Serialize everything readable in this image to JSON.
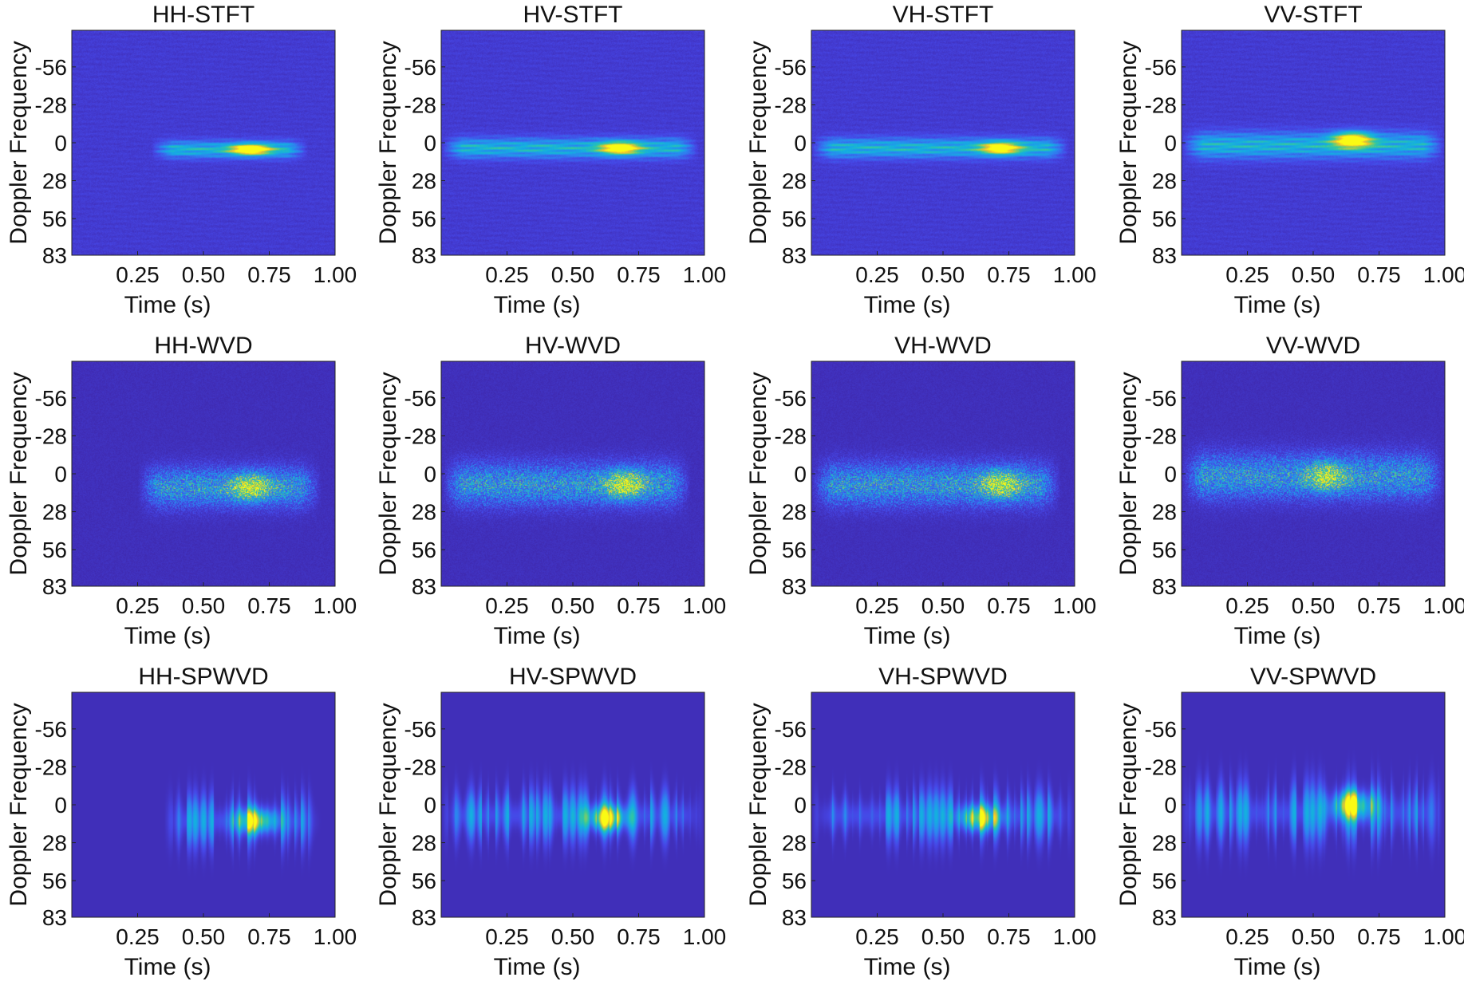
{
  "chart_data": [
    {
      "type": "heatmap",
      "title": "HH-STFT",
      "method": "STFT",
      "channel": "HH",
      "xlabel": "Time (s)",
      "ylabel": "Doppler Frequency",
      "xticks": [
        0.25,
        0.5,
        0.75,
        1.0
      ],
      "xtick_labels": [
        "0.25",
        "0.50",
        "0.75",
        "1.00"
      ],
      "yticks": [
        -56,
        -28,
        0,
        28,
        56,
        83
      ],
      "ytick_labels": [
        "-56",
        "-28",
        "0",
        "28",
        "56",
        "83"
      ],
      "xlim": [
        0,
        1.0
      ],
      "ylim": [
        -83,
        83
      ],
      "yaxis_direction": "reversed",
      "colormap": "parula",
      "background_color": "#3e26a8",
      "energy": {
        "t_start": 0.3,
        "t_end": 0.9,
        "f_center": 5,
        "f_spread": 6,
        "peak_t": 0.68,
        "peak_f": 5,
        "peak_level": 0.95
      }
    },
    {
      "type": "heatmap",
      "title": "HV-STFT",
      "method": "STFT",
      "channel": "HV",
      "xlabel": "Time (s)",
      "ylabel": "Doppler Frequency",
      "xticks": [
        0.25,
        0.5,
        0.75,
        1.0
      ],
      "xtick_labels": [
        "0.25",
        "0.50",
        "0.75",
        "1.00"
      ],
      "yticks": [
        -56,
        -28,
        0,
        28,
        56,
        83
      ],
      "ytick_labels": [
        "-56",
        "-28",
        "0",
        "28",
        "56",
        "83"
      ],
      "xlim": [
        0,
        1.0
      ],
      "ylim": [
        -83,
        83
      ],
      "yaxis_direction": "reversed",
      "colormap": "parula",
      "background_color": "#3e26a8",
      "energy": {
        "t_start": 0.0,
        "t_end": 0.98,
        "f_center": 4,
        "f_spread": 7,
        "peak_t": 0.68,
        "peak_f": 4,
        "peak_level": 0.85
      }
    },
    {
      "type": "heatmap",
      "title": "VH-STFT",
      "method": "STFT",
      "channel": "VH",
      "xlabel": "Time (s)",
      "ylabel": "Doppler Frequency",
      "xticks": [
        0.25,
        0.5,
        0.75,
        1.0
      ],
      "xtick_labels": [
        "0.25",
        "0.50",
        "0.75",
        "1.00"
      ],
      "yticks": [
        -56,
        -28,
        0,
        28,
        56,
        83
      ],
      "ytick_labels": [
        "-56",
        "-28",
        "0",
        "28",
        "56",
        "83"
      ],
      "xlim": [
        0,
        1.0
      ],
      "ylim": [
        -83,
        83
      ],
      "yaxis_direction": "reversed",
      "colormap": "parula",
      "background_color": "#3e26a8",
      "energy": {
        "t_start": 0.0,
        "t_end": 0.98,
        "f_center": 4,
        "f_spread": 7,
        "peak_t": 0.72,
        "peak_f": 4,
        "peak_level": 0.8
      }
    },
    {
      "type": "heatmap",
      "title": "VV-STFT",
      "method": "STFT",
      "channel": "VV",
      "xlabel": "Time (s)",
      "ylabel": "Doppler Frequency",
      "xticks": [
        0.25,
        0.5,
        0.75,
        1.0
      ],
      "xtick_labels": [
        "0.25",
        "0.50",
        "0.75",
        "1.00"
      ],
      "yticks": [
        -56,
        -28,
        0,
        28,
        56,
        83
      ],
      "ytick_labels": [
        "-56",
        "-28",
        "0",
        "28",
        "56",
        "83"
      ],
      "xlim": [
        0,
        1.0
      ],
      "ylim": [
        -83,
        83
      ],
      "yaxis_direction": "reversed",
      "colormap": "parula",
      "background_color": "#3e26a8",
      "energy": {
        "t_start": 0.0,
        "t_end": 1.0,
        "f_center": 2,
        "f_spread": 9,
        "peak_t": 0.65,
        "peak_f": -2,
        "peak_level": 0.9
      }
    },
    {
      "type": "heatmap",
      "title": "HH-WVD",
      "method": "WVD",
      "channel": "HH",
      "xlabel": "Time (s)",
      "ylabel": "Doppler Frequency",
      "xticks": [
        0.25,
        0.5,
        0.75,
        1.0
      ],
      "xtick_labels": [
        "0.25",
        "0.50",
        "0.75",
        "1.00"
      ],
      "yticks": [
        -56,
        -28,
        0,
        28,
        56,
        83
      ],
      "ytick_labels": [
        "-56",
        "-28",
        "0",
        "28",
        "56",
        "83"
      ],
      "xlim": [
        0,
        1.0
      ],
      "ylim": [
        -83,
        83
      ],
      "yaxis_direction": "reversed",
      "colormap": "parula",
      "background_color": "#3e26a8",
      "energy": {
        "t_start": 0.25,
        "t_end": 0.95,
        "f_center": 10,
        "f_spread": 14,
        "peak_t": 0.68,
        "peak_f": 10,
        "peak_level": 0.9
      }
    },
    {
      "type": "heatmap",
      "title": "HV-WVD",
      "method": "WVD",
      "channel": "HV",
      "xlabel": "Time (s)",
      "ylabel": "Doppler Frequency",
      "xticks": [
        0.25,
        0.5,
        0.75,
        1.0
      ],
      "xtick_labels": [
        "0.25",
        "0.50",
        "0.75",
        "1.00"
      ],
      "yticks": [
        -56,
        -28,
        0,
        28,
        56,
        83
      ],
      "ytick_labels": [
        "-56",
        "-28",
        "0",
        "28",
        "56",
        "83"
      ],
      "xlim": [
        0,
        1.0
      ],
      "ylim": [
        -83,
        83
      ],
      "yaxis_direction": "reversed",
      "colormap": "parula",
      "background_color": "#3e26a8",
      "energy": {
        "t_start": 0.0,
        "t_end": 0.95,
        "f_center": 8,
        "f_spread": 15,
        "peak_t": 0.7,
        "peak_f": 8,
        "peak_level": 0.85
      }
    },
    {
      "type": "heatmap",
      "title": "VH-WVD",
      "method": "WVD",
      "channel": "VH",
      "xlabel": "Time (s)",
      "ylabel": "Doppler Frequency",
      "xticks": [
        0.25,
        0.5,
        0.75,
        1.0
      ],
      "xtick_labels": [
        "0.25",
        "0.50",
        "0.75",
        "1.00"
      ],
      "yticks": [
        -56,
        -28,
        0,
        28,
        56,
        83
      ],
      "ytick_labels": [
        "-56",
        "-28",
        "0",
        "28",
        "56",
        "83"
      ],
      "xlim": [
        0,
        1.0
      ],
      "ylim": [
        -83,
        83
      ],
      "yaxis_direction": "reversed",
      "colormap": "parula",
      "background_color": "#3e26a8",
      "energy": {
        "t_start": 0.0,
        "t_end": 0.95,
        "f_center": 8,
        "f_spread": 15,
        "peak_t": 0.72,
        "peak_f": 8,
        "peak_level": 0.85
      }
    },
    {
      "type": "heatmap",
      "title": "VV-WVD",
      "method": "WVD",
      "channel": "VV",
      "xlabel": "Time (s)",
      "ylabel": "Doppler Frequency",
      "xticks": [
        0.25,
        0.5,
        0.75,
        1.0
      ],
      "xtick_labels": [
        "0.25",
        "0.50",
        "0.75",
        "1.00"
      ],
      "yticks": [
        -56,
        -28,
        0,
        28,
        56,
        83
      ],
      "ytick_labels": [
        "-56",
        "-28",
        "0",
        "28",
        "56",
        "83"
      ],
      "xlim": [
        0,
        1.0
      ],
      "ylim": [
        -83,
        83
      ],
      "yaxis_direction": "reversed",
      "colormap": "parula",
      "background_color": "#3e26a8",
      "energy": {
        "t_start": 0.0,
        "t_end": 1.0,
        "f_center": 2,
        "f_spread": 16,
        "peak_t": 0.55,
        "peak_f": 2,
        "peak_level": 0.7
      }
    },
    {
      "type": "heatmap",
      "title": "HH-SPWVD",
      "method": "SPWVD",
      "channel": "HH",
      "xlabel": "Time (s)",
      "ylabel": "Doppler Frequency",
      "xticks": [
        0.25,
        0.5,
        0.75,
        1.0
      ],
      "xtick_labels": [
        "0.25",
        "0.50",
        "0.75",
        "1.00"
      ],
      "yticks": [
        -56,
        -28,
        0,
        28,
        56,
        83
      ],
      "ytick_labels": [
        "-56",
        "-28",
        "0",
        "28",
        "56",
        "83"
      ],
      "xlim": [
        0,
        1.0
      ],
      "ylim": [
        -83,
        83
      ],
      "yaxis_direction": "reversed",
      "colormap": "parula",
      "background_color": "#3e26a8",
      "energy": {
        "t_start": 0.35,
        "t_end": 0.95,
        "f_center": 12,
        "f_spread": 14,
        "peak_t": 0.7,
        "peak_f": 12,
        "peak_level": 1.0
      }
    },
    {
      "type": "heatmap",
      "title": "HV-SPWVD",
      "method": "SPWVD",
      "channel": "HV",
      "xlabel": "Time (s)",
      "ylabel": "Doppler Frequency",
      "xticks": [
        0.25,
        0.5,
        0.75,
        1.0
      ],
      "xtick_labels": [
        "0.25",
        "0.50",
        "0.75",
        "1.00"
      ],
      "yticks": [
        -56,
        -28,
        0,
        28,
        56,
        83
      ],
      "ytick_labels": [
        "-56",
        "-28",
        "0",
        "28",
        "56",
        "83"
      ],
      "xlim": [
        0,
        1.0
      ],
      "ylim": [
        -83,
        83
      ],
      "yaxis_direction": "reversed",
      "colormap": "parula",
      "background_color": "#3e26a8",
      "energy": {
        "t_start": 0.0,
        "t_end": 1.0,
        "f_center": 8,
        "f_spread": 14,
        "peak_t": 0.63,
        "peak_f": 10,
        "peak_level": 0.95
      }
    },
    {
      "type": "heatmap",
      "title": "VH-SPWVD",
      "method": "SPWVD",
      "channel": "VH",
      "xlabel": "Time (s)",
      "ylabel": "Doppler Frequency",
      "xticks": [
        0.25,
        0.5,
        0.75,
        1.0
      ],
      "xtick_labels": [
        "0.25",
        "0.50",
        "0.75",
        "1.00"
      ],
      "yticks": [
        -56,
        -28,
        0,
        28,
        56,
        83
      ],
      "ytick_labels": [
        "-56",
        "-28",
        "0",
        "28",
        "56",
        "83"
      ],
      "xlim": [
        0,
        1.0
      ],
      "ylim": [
        -83,
        83
      ],
      "yaxis_direction": "reversed",
      "colormap": "parula",
      "background_color": "#3e26a8",
      "energy": {
        "t_start": 0.0,
        "t_end": 1.0,
        "f_center": 8,
        "f_spread": 14,
        "peak_t": 0.64,
        "peak_f": 10,
        "peak_level": 0.95
      }
    },
    {
      "type": "heatmap",
      "title": "VV-SPWVD",
      "method": "SPWVD",
      "channel": "VV",
      "xlabel": "Time (s)",
      "ylabel": "Doppler Frequency",
      "xticks": [
        0.25,
        0.5,
        0.75,
        1.0
      ],
      "xtick_labels": [
        "0.25",
        "0.50",
        "0.75",
        "1.00"
      ],
      "yticks": [
        -56,
        -28,
        0,
        28,
        56,
        83
      ],
      "ytick_labels": [
        "-56",
        "-28",
        "0",
        "28",
        "56",
        "83"
      ],
      "xlim": [
        0,
        1.0
      ],
      "ylim": [
        -83,
        83
      ],
      "yaxis_direction": "reversed",
      "colormap": "parula",
      "background_color": "#3e26a8",
      "energy": {
        "t_start": 0.0,
        "t_end": 1.0,
        "f_center": 6,
        "f_spread": 16,
        "peak_t": 0.65,
        "peak_f": 0,
        "peak_level": 1.0
      }
    }
  ]
}
